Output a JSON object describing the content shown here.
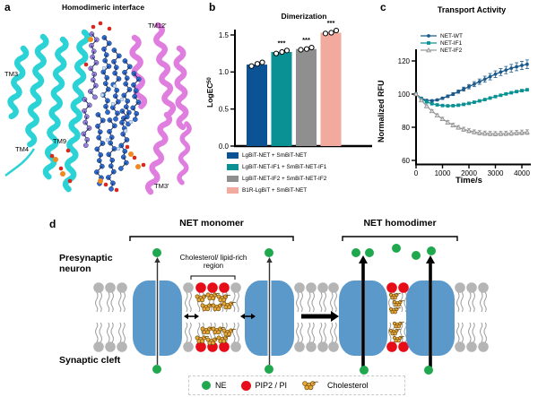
{
  "figure": {
    "panel_a": {
      "label": "a",
      "title": "Homodimeric interface",
      "helix_labels": [
        "TM3",
        "TM4",
        "TM9",
        "TM12'",
        "TM3'"
      ],
      "colors": {
        "left_helices": "#2bd2d6",
        "right_helices": "#e07ee0",
        "lipids": "#2e6bcc",
        "lipids_alt": "#9d7ed8",
        "oxygen": "#d6281e",
        "phosphorus": "#f08a1e"
      }
    },
    "panel_b": {
      "label": "b"
    },
    "panel_c": {
      "label": "c"
    },
    "panel_d": {
      "label": "d",
      "monomer_title": "NET monomer",
      "homodimer_title": "NET homodimer",
      "presynaptic_label": "Presynaptic neuron",
      "synaptic_label": "Synaptic cleft",
      "cholesterol_region_label": "Cholesterol/ lipid-rich region",
      "colors": {
        "protein": "#5b99cb",
        "lipid_head": "#b5b5b5",
        "pip2_head": "#e60d18",
        "ne": "#1fa84d",
        "cholesterol": "#e8a83c"
      },
      "legend": [
        {
          "label": "NE",
          "color": "#1fa84d",
          "shape": "circle"
        },
        {
          "label": "PIP2 / PI",
          "color": "#e60d18",
          "shape": "circle"
        },
        {
          "label": "Cholesterol",
          "color": "#e8a83c",
          "shape": "cholesterol-molecule"
        }
      ]
    }
  },
  "chart_data": [
    {
      "id": "panel_b",
      "type": "bar",
      "title": "Dimerization",
      "ylabel": "LogEC",
      "ylabel_subscript": "50",
      "ylim": [
        0,
        1.65
      ],
      "yticks": [
        0.0,
        0.5,
        1.0,
        1.5
      ],
      "grid": false,
      "legend_position": "below",
      "categories": [
        "LgBiT-NET + SmBiT-NET",
        "LgBiT-NET-IF1 + SmBiT-NET-IF1",
        "LgBiT-NET-IF2 + SmBiT-NET-IF2",
        "B1R-LgBiT + SmBiT-NET"
      ],
      "values": [
        1.1,
        1.27,
        1.31,
        1.53
      ],
      "points": [
        [
          1.08,
          1.13,
          1.11
        ],
        [
          1.25,
          1.29,
          1.27
        ],
        [
          1.3,
          1.33,
          1.31
        ],
        [
          1.52,
          1.56,
          1.53
        ]
      ],
      "significance": [
        "",
        "***",
        "***",
        "***"
      ],
      "colors": [
        "#0b5394",
        "#0a9193",
        "#8f8f8f",
        "#f2a99e"
      ]
    },
    {
      "id": "panel_c",
      "type": "line",
      "title": "Transport Activity",
      "xlabel": "Time/s",
      "ylabel": "Normalized RFU",
      "xlim": [
        0,
        4300
      ],
      "ylim": [
        55,
        125
      ],
      "xticks": [
        0,
        1000,
        2000,
        3000,
        4000
      ],
      "yticks": [
        60,
        80,
        100,
        120
      ],
      "grid": false,
      "legend_position": "top-left",
      "x": [
        0,
        200,
        400,
        600,
        800,
        1000,
        1200,
        1400,
        1600,
        1800,
        2000,
        2200,
        2400,
        2600,
        2800,
        3000,
        3200,
        3400,
        3600,
        3800,
        4000,
        4200
      ],
      "series": [
        {
          "name": "NET-WT",
          "color": "#1b5a8a",
          "marker": "circle",
          "y": [
            100,
            97.5,
            96.2,
            96.0,
            96.5,
            97.5,
            98.7,
            100,
            101.5,
            103,
            104.5,
            106,
            107.5,
            109,
            110.5,
            112,
            113.3,
            114.5,
            115.6,
            116.5,
            117.3,
            118
          ],
          "err": [
            0.5,
            0.5,
            0.5,
            0.6,
            0.6,
            0.7,
            0.8,
            0.9,
            1.0,
            1.2,
            1.3,
            1.5,
            1.6,
            1.8,
            1.9,
            2.0,
            2.1,
            2.2,
            2.3,
            2.4,
            2.5,
            2.6
          ]
        },
        {
          "name": "NET-IF1",
          "color": "#0a9193",
          "marker": "square",
          "y": [
            100,
            97.2,
            95.3,
            94.2,
            93.5,
            93.1,
            92.9,
            93.0,
            93.3,
            93.8,
            94.4,
            95.1,
            95.9,
            96.7,
            97.6,
            98.5,
            99.3,
            100.1,
            100.8,
            101.5,
            102.1,
            102.6
          ],
          "err": [
            0.4,
            0.4,
            0.4,
            0.4,
            0.4,
            0.4,
            0.4,
            0.4,
            0.4,
            0.4,
            0.4,
            0.4,
            0.4,
            0.4,
            0.4,
            0.4,
            0.4,
            0.4,
            0.4,
            0.4,
            0.4,
            0.4
          ]
        },
        {
          "name": "NET-IF2",
          "color": "#9a9a9a",
          "marker": "triangle",
          "y": [
            100,
            96.3,
            92.8,
            89.8,
            87.2,
            85.0,
            83.0,
            81.3,
            79.9,
            78.8,
            77.9,
            77.2,
            76.7,
            76.4,
            76.2,
            76.1,
            76.2,
            76.3,
            76.5,
            76.7,
            76.9,
            77.1
          ],
          "err": [
            0.5,
            0.6,
            0.7,
            0.8,
            0.9,
            1.0,
            1.0,
            1.1,
            1.1,
            1.2,
            1.2,
            1.2,
            1.3,
            1.3,
            1.3,
            1.3,
            1.3,
            1.3,
            1.4,
            1.4,
            1.4,
            1.4
          ]
        }
      ]
    }
  ]
}
